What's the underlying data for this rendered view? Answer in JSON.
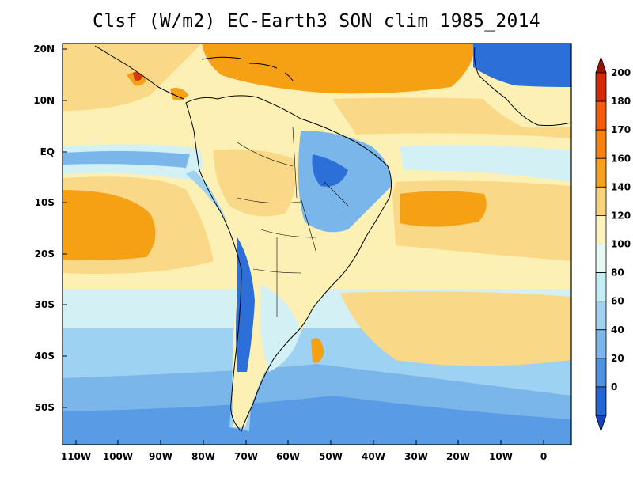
{
  "title": "Clsf (W/m2) EC-Earth3 SON clim 1985_2014",
  "lat_labels": [
    "20N",
    "10N",
    "EQ",
    "10S",
    "20S",
    "30S",
    "40S",
    "50S"
  ],
  "lon_labels": [
    "110W",
    "100W",
    "90W",
    "80W",
    "70W",
    "60W",
    "50W",
    "40W",
    "30W",
    "20W",
    "10W",
    "0"
  ],
  "colorbar": {
    "labels": [
      "200",
      "180",
      "170",
      "160",
      "140",
      "120",
      "100",
      "80",
      "60",
      "40",
      "20",
      "0"
    ],
    "colors": [
      "#000000",
      "#9a1006",
      "#d42a09",
      "#f25a0c",
      "#f8820f",
      "#f5a11d",
      "#f7d27a",
      "#fdf3bd",
      "#e8f8f2",
      "#c3edf2",
      "#9fd3ee",
      "#7bb6ea",
      "#4e91e0",
      "#2466d3",
      "#1245b8"
    ]
  },
  "colors": {
    "deep_blue": "#2d6fd8",
    "mid_blue": "#5a9be6",
    "light_blue": "#9ed2f2",
    "pale_cyan": "#d3f1f5",
    "pale_yellow": "#fdf0b5",
    "tan": "#f9d887",
    "orange": "#f6a014",
    "red": "#d33a12"
  }
}
